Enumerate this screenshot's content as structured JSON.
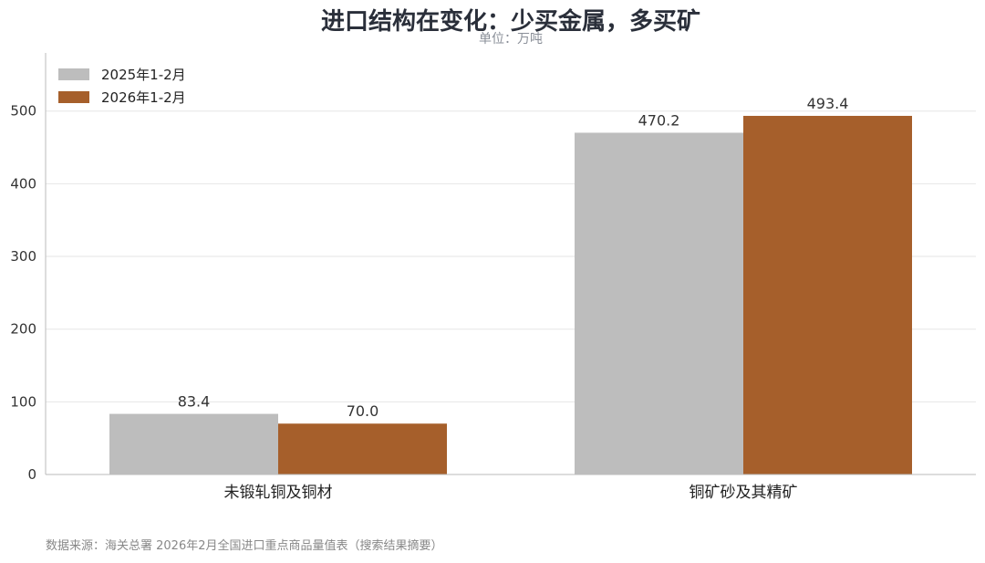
{
  "chart_data": {
    "type": "bar",
    "title": "进口结构在变化：少买金属，多买矿",
    "subtitle": "单位：万吨",
    "categories": [
      "未锻轧铜及铜材",
      "铜矿砂及其精矿"
    ],
    "series": [
      {
        "name": "2025年1-2月",
        "values": [
          83.4,
          470.2
        ],
        "labels": [
          "83.4",
          "470.2"
        ],
        "color": "#bdbdbd"
      },
      {
        "name": "2026年1-2月",
        "values": [
          70.0,
          493.4
        ],
        "labels": [
          "70.0",
          "493.4"
        ],
        "color": "#a65f2b"
      }
    ],
    "yticks": [
      0,
      100,
      200,
      300,
      400,
      500
    ],
    "ylim": [
      0,
      580
    ],
    "grid": true,
    "legend_position": "top-left",
    "source": "数据来源：海关总署 2026年2月全国进口重点商品量值表（搜索结果摘要）"
  }
}
